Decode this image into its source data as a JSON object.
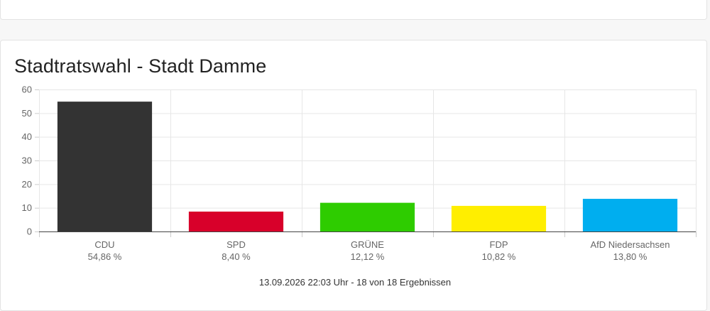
{
  "chart_data": {
    "type": "bar",
    "title": "Stadtratswahl - Stadt Damme",
    "categories": [
      "CDU",
      "SPD",
      "GRÜNE",
      "FDP",
      "AfD Niedersachsen"
    ],
    "values": [
      54.86,
      8.4,
      12.12,
      10.82,
      13.8
    ],
    "value_labels": [
      "54,86 %",
      "8,40 %",
      "12,12 %",
      "10,82 %",
      "13,80 %"
    ],
    "colors": [
      "#333333",
      "#d8002a",
      "#2ecc00",
      "#ffee00",
      "#00aeef"
    ],
    "ylim": [
      0,
      60
    ],
    "yticks": [
      0,
      10,
      20,
      30,
      40,
      50,
      60
    ],
    "xlabel": "",
    "ylabel": "",
    "grid": true,
    "footnote": "13.09.2026 22:03 Uhr - 18 von 18 Ergebnissen"
  }
}
